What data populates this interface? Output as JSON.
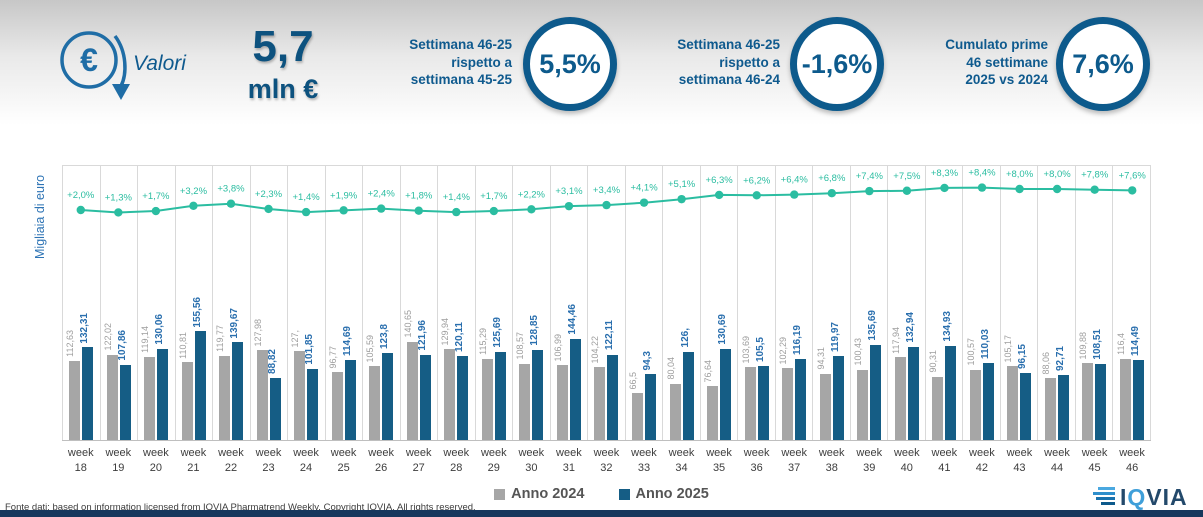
{
  "header": {
    "valori_label": "Valori",
    "euro_glyph": "€",
    "total_value": "5,7",
    "total_unit": "mln €",
    "kpis": [
      {
        "label": "Settimana 46-25\nrispetto a\nsettimana 45-25",
        "value": "5,5%"
      },
      {
        "label": "Settimana 46-25\nrispetto a\nsettimana 46-24",
        "value": "-1,6%"
      },
      {
        "label": "Cumulato prime\n46 settimane\n2025 vs 2024",
        "value": "7,6%"
      }
    ]
  },
  "chart_data": {
    "type": "bar",
    "title": "",
    "ylabel": "Migliaia di euro",
    "xlabel": "",
    "week_prefix": "week",
    "weeks": [
      18,
      19,
      20,
      21,
      22,
      23,
      24,
      25,
      26,
      27,
      28,
      29,
      30,
      31,
      32,
      33,
      34,
      35,
      36,
      37,
      38,
      39,
      40,
      41,
      42,
      43,
      44,
      45,
      46
    ],
    "series": [
      {
        "name": "Anno 2024",
        "color": "#a6a6a6",
        "values": [
          112.63,
          122.02,
          119.14,
          110.81,
          119.77,
          127.98,
          127.0,
          96.77,
          105.59,
          140.65,
          129.94,
          115.29,
          108.57,
          106.99,
          104.22,
          66.5,
          80.04,
          76.64,
          103.69,
          102.29,
          94.31,
          100.43,
          117.94,
          90.31,
          100.57,
          105.17,
          88.06,
          109.88,
          116.4
        ],
        "labels": [
          "112,63",
          "122,02",
          "119,14",
          "110,81",
          "119,77",
          "127,98",
          "127,",
          "96,77",
          "105,59",
          "140,65",
          "129,94",
          "115,29",
          "108,57",
          "106,99",
          "104,22",
          "66,5",
          "80,04",
          "76,64",
          "103,69",
          "102,29",
          "94,31",
          "100,43",
          "117,94",
          "90,31",
          "100,57",
          "105,17",
          "88,06",
          "109,88",
          "116,4"
        ]
      },
      {
        "name": "Anno 2025",
        "color": "#155d85",
        "values": [
          132.31,
          107.86,
          130.06,
          155.56,
          139.67,
          88.82,
          101.85,
          114.69,
          123.8,
          121.96,
          120.11,
          125.69,
          128.85,
          144.46,
          122.11,
          94.3,
          126.0,
          130.69,
          105.5,
          116.19,
          119.97,
          135.69,
          132.94,
          134.93,
          110.03,
          96.15,
          92.71,
          108.51,
          114.49
        ],
        "labels": [
          "132,31",
          "107,86",
          "130,06",
          "155,56",
          "139,67",
          "88,82",
          "101,85",
          "114,69",
          "123,8",
          "121,96",
          "120,11",
          "125,69",
          "128,85",
          "144,46",
          "122,11",
          "94,3",
          "126,",
          "130,69",
          "105,5",
          "116,19",
          "119,97",
          "135,69",
          "132,94",
          "134,93",
          "110,03",
          "96,15",
          "92,71",
          "108,51",
          "114,49"
        ]
      }
    ],
    "line": {
      "name": "variazione % 2025 vs 2024",
      "color": "#2bbda1",
      "values": [
        2.0,
        1.3,
        1.7,
        3.2,
        3.8,
        2.3,
        1.4,
        1.9,
        2.4,
        1.8,
        1.4,
        1.7,
        2.2,
        3.1,
        3.4,
        4.1,
        5.1,
        6.3,
        6.2,
        6.4,
        6.8,
        7.4,
        7.5,
        8.3,
        8.4,
        8.0,
        8.0,
        7.8,
        7.6
      ],
      "labels": [
        "+2,0%",
        "+1,3%",
        "+1,7%",
        "+3,2%",
        "+3,8%",
        "+2,3%",
        "+1,4%",
        "+1,9%",
        "+2,4%",
        "+1,8%",
        "+1,4%",
        "+1,7%",
        "+2,2%",
        "+3,1%",
        "+3,4%",
        "+4,1%",
        "+5,1%",
        "+6,3%",
        "+6,2%",
        "+6,4%",
        "+6,8%",
        "+7,4%",
        "+7,5%",
        "+8,3%",
        "+8,4%",
        "+8,0%",
        "+8,0%",
        "+7,8%",
        "+7,6%"
      ],
      "grid": "vertical-only",
      "legend_position": "bottom"
    }
  },
  "footer": {
    "source": "Fonte dati: based on information licensed from IQVIA Pharmatrend Weekly. Copyright IQVIA. All rights reserved.",
    "logo_text": "IQVIA"
  },
  "colors": {
    "accent_blue": "#0d5a8c",
    "bar_2024": "#a6a6a6",
    "bar_2025": "#155d85",
    "line_teal": "#2bbda1",
    "label_blue": "#2a6fae",
    "bottom_strip": "#16375c"
  }
}
